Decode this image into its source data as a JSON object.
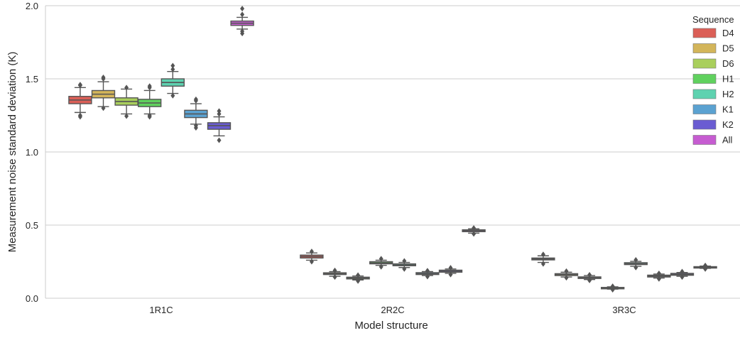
{
  "chart_data": {
    "type": "box",
    "xlabel": "Model structure",
    "ylabel": "Measurement noise standard deviation (K)",
    "ylim": [
      0.0,
      2.0
    ],
    "yticks": [
      "0.0",
      "0.5",
      "1.0",
      "1.5",
      "2.0"
    ],
    "grid": "horizontal",
    "legend": {
      "title": "Sequence",
      "placement": "top-right"
    },
    "categories": [
      "1R1C",
      "2R2C",
      "3R3C"
    ],
    "series": [
      {
        "name": "D4",
        "color": "#db5f57",
        "boxes": [
          {
            "q1": 1.33,
            "median": 1.355,
            "q3": 1.38,
            "whislo": 1.27,
            "whishi": 1.44,
            "fliers": [
              1.24,
              1.25,
              1.455,
              1.46
            ]
          },
          {
            "q1": 0.275,
            "median": 0.285,
            "q3": 0.295,
            "whislo": 0.26,
            "whishi": 0.31,
            "fliers": [
              0.25,
              0.32
            ]
          },
          {
            "q1": 0.262,
            "median": 0.268,
            "q3": 0.275,
            "whislo": 0.245,
            "whishi": 0.29,
            "fliers": [
              0.235,
              0.3
            ]
          }
        ]
      },
      {
        "name": "D5",
        "color": "#d3b55a",
        "boxes": [
          {
            "q1": 1.37,
            "median": 1.395,
            "q3": 1.42,
            "whislo": 1.31,
            "whishi": 1.48,
            "fliers": [
              1.3,
              1.5,
              1.51
            ]
          },
          {
            "q1": 0.162,
            "median": 0.168,
            "q3": 0.174,
            "whislo": 0.15,
            "whishi": 0.182,
            "fliers": [
              0.145,
              0.19
            ]
          },
          {
            "q1": 0.155,
            "median": 0.162,
            "q3": 0.168,
            "whislo": 0.145,
            "whishi": 0.178,
            "fliers": [
              0.14,
              0.185
            ]
          }
        ]
      },
      {
        "name": "D6",
        "color": "#a9cf5c",
        "boxes": [
          {
            "q1": 1.32,
            "median": 1.345,
            "q3": 1.37,
            "whislo": 1.26,
            "whishi": 1.43,
            "fliers": [
              1.245,
              1.44
            ]
          },
          {
            "q1": 0.132,
            "median": 0.138,
            "q3": 0.144,
            "whislo": 0.125,
            "whishi": 0.152,
            "fliers": [
              0.118,
              0.158
            ]
          },
          {
            "q1": 0.135,
            "median": 0.14,
            "q3": 0.146,
            "whislo": 0.128,
            "whishi": 0.155,
            "fliers": [
              0.122,
              0.16
            ]
          }
        ]
      },
      {
        "name": "H1",
        "color": "#60d15e",
        "boxes": [
          {
            "q1": 1.31,
            "median": 1.335,
            "q3": 1.36,
            "whislo": 1.26,
            "whishi": 1.42,
            "fliers": [
              1.24,
              1.25,
              1.44,
              1.45
            ]
          },
          {
            "q1": 0.235,
            "median": 0.242,
            "q3": 0.25,
            "whislo": 0.225,
            "whishi": 0.26,
            "fliers": [
              0.215,
              0.27
            ]
          },
          {
            "q1": 0.066,
            "median": 0.07,
            "q3": 0.074,
            "whislo": 0.062,
            "whishi": 0.078,
            "fliers": [
              0.058,
              0.082
            ]
          }
        ]
      },
      {
        "name": "H2",
        "color": "#5ed2b0",
        "boxes": [
          {
            "q1": 1.45,
            "median": 1.475,
            "q3": 1.5,
            "whislo": 1.4,
            "whishi": 1.55,
            "fliers": [
              1.385,
              1.565,
              1.59
            ]
          },
          {
            "q1": 0.222,
            "median": 0.228,
            "q3": 0.235,
            "whislo": 0.21,
            "whishi": 0.245,
            "fliers": [
              0.2,
              0.255
            ]
          },
          {
            "q1": 0.23,
            "median": 0.236,
            "q3": 0.243,
            "whislo": 0.218,
            "whishi": 0.252,
            "fliers": [
              0.21,
              0.262
            ]
          }
        ]
      },
      {
        "name": "K1",
        "color": "#5ba2d1",
        "boxes": [
          {
            "q1": 1.235,
            "median": 1.26,
            "q3": 1.285,
            "whislo": 1.19,
            "whishi": 1.33,
            "fliers": [
              1.165,
              1.18,
              1.35,
              1.36
            ]
          },
          {
            "q1": 0.162,
            "median": 0.168,
            "q3": 0.175,
            "whislo": 0.155,
            "whishi": 0.182,
            "fliers": [
              0.148,
              0.188
            ]
          },
          {
            "q1": 0.145,
            "median": 0.152,
            "q3": 0.158,
            "whislo": 0.138,
            "whishi": 0.165,
            "fliers": [
              0.132,
              0.17
            ]
          }
        ]
      },
      {
        "name": "K2",
        "color": "#6a5cd2",
        "boxes": [
          {
            "q1": 1.155,
            "median": 1.18,
            "q3": 1.2,
            "whislo": 1.11,
            "whishi": 1.24,
            "fliers": [
              1.08,
              1.26,
              1.28
            ]
          },
          {
            "q1": 0.178,
            "median": 0.185,
            "q3": 0.192,
            "whislo": 0.17,
            "whishi": 0.2,
            "fliers": [
              0.162,
              0.208
            ]
          },
          {
            "q1": 0.157,
            "median": 0.163,
            "q3": 0.17,
            "whislo": 0.15,
            "whishi": 0.176,
            "fliers": [
              0.145,
              0.182
            ]
          }
        ]
      },
      {
        "name": "All",
        "color": "#c65cd1",
        "boxes": [
          {
            "q1": 1.865,
            "median": 1.88,
            "q3": 1.895,
            "whislo": 1.84,
            "whishi": 1.92,
            "fliers": [
              1.81,
              1.825,
              1.94,
              1.98
            ]
          },
          {
            "q1": 0.455,
            "median": 0.462,
            "q3": 0.468,
            "whislo": 0.445,
            "whishi": 0.475,
            "fliers": [
              0.44,
              0.48
            ]
          },
          {
            "q1": 0.208,
            "median": 0.212,
            "q3": 0.216,
            "whislo": 0.204,
            "whishi": 0.22,
            "fliers": [
              0.2,
              0.224
            ]
          }
        ]
      }
    ]
  }
}
